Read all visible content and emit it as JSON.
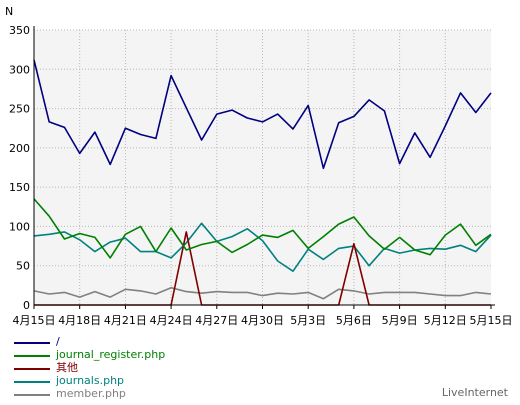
{
  "chart_data": {
    "type": "line",
    "ylabel": "N",
    "ylim": [
      0,
      350
    ],
    "yticks": [
      0,
      50,
      100,
      150,
      200,
      250,
      300,
      350
    ],
    "grid": true,
    "legend_position": "bottom-left",
    "categories": [
      "4月15日",
      "4月16日",
      "4月17日",
      "4月18日",
      "4月19日",
      "4月20日",
      "4月21日",
      "4月22日",
      "4月23日",
      "4月24日",
      "4月25日",
      "4月26日",
      "4月27日",
      "4月28日",
      "4月29日",
      "4月30日",
      "5月1日",
      "5月2日",
      "5月3日",
      "5月4日",
      "5月5日",
      "5月6日",
      "5月7日",
      "5月8日",
      "5月9日",
      "5月10日",
      "5月11日",
      "5月12日",
      "5月13日",
      "5月14日",
      "5月15日"
    ],
    "xtick_labels": [
      {
        "index": 0,
        "label": "4月15日"
      },
      {
        "index": 3,
        "label": "4月18日"
      },
      {
        "index": 6,
        "label": "4月21日"
      },
      {
        "index": 9,
        "label": "4月24日"
      },
      {
        "index": 12,
        "label": "4月27日"
      },
      {
        "index": 15,
        "label": "4月30日"
      },
      {
        "index": 18,
        "label": "5月3日"
      },
      {
        "index": 21,
        "label": "5月6日"
      },
      {
        "index": 24,
        "label": "5月9日"
      },
      {
        "index": 27,
        "label": "5月12日"
      },
      {
        "index": 30,
        "label": "5月15日"
      }
    ],
    "series": [
      {
        "name": "/",
        "color": "#000080",
        "values": [
          312,
          233,
          226,
          193,
          220,
          179,
          225,
          217,
          212,
          292,
          251,
          210,
          243,
          248,
          238,
          233,
          243,
          224,
          254,
          174,
          232,
          240,
          261,
          247,
          180,
          219,
          188,
          228,
          270,
          245,
          270
        ]
      },
      {
        "name": "journal_register.php",
        "color": "#008000",
        "values": [
          135,
          113,
          84,
          91,
          86,
          60,
          90,
          100,
          68,
          98,
          70,
          77,
          81,
          67,
          77,
          89,
          86,
          95,
          72,
          87,
          103,
          112,
          88,
          71,
          86,
          70,
          64,
          89,
          103,
          76,
          90
        ]
      },
      {
        "name": "其他",
        "color": "#800000",
        "values": [
          0,
          0,
          0,
          0,
          0,
          0,
          0,
          0,
          0,
          0,
          93,
          0,
          0,
          0,
          0,
          0,
          0,
          0,
          0,
          0,
          0,
          78,
          0,
          0,
          0,
          0,
          0,
          0,
          0,
          0,
          0
        ]
      },
      {
        "name": "journals.php",
        "color": "#008080",
        "values": [
          88,
          90,
          93,
          83,
          68,
          80,
          85,
          68,
          68,
          60,
          79,
          104,
          81,
          87,
          97,
          82,
          56,
          43,
          71,
          58,
          72,
          75,
          50,
          72,
          66,
          70,
          72,
          71,
          76,
          68,
          89
        ]
      },
      {
        "name": "member.php",
        "color": "#808080",
        "values": [
          18,
          14,
          16,
          10,
          17,
          10,
          20,
          18,
          14,
          22,
          17,
          15,
          17,
          16,
          16,
          12,
          15,
          14,
          16,
          8,
          20,
          18,
          14,
          16,
          16,
          16,
          14,
          12,
          12,
          16,
          14
        ]
      }
    ]
  },
  "branding": "LiveInternet"
}
